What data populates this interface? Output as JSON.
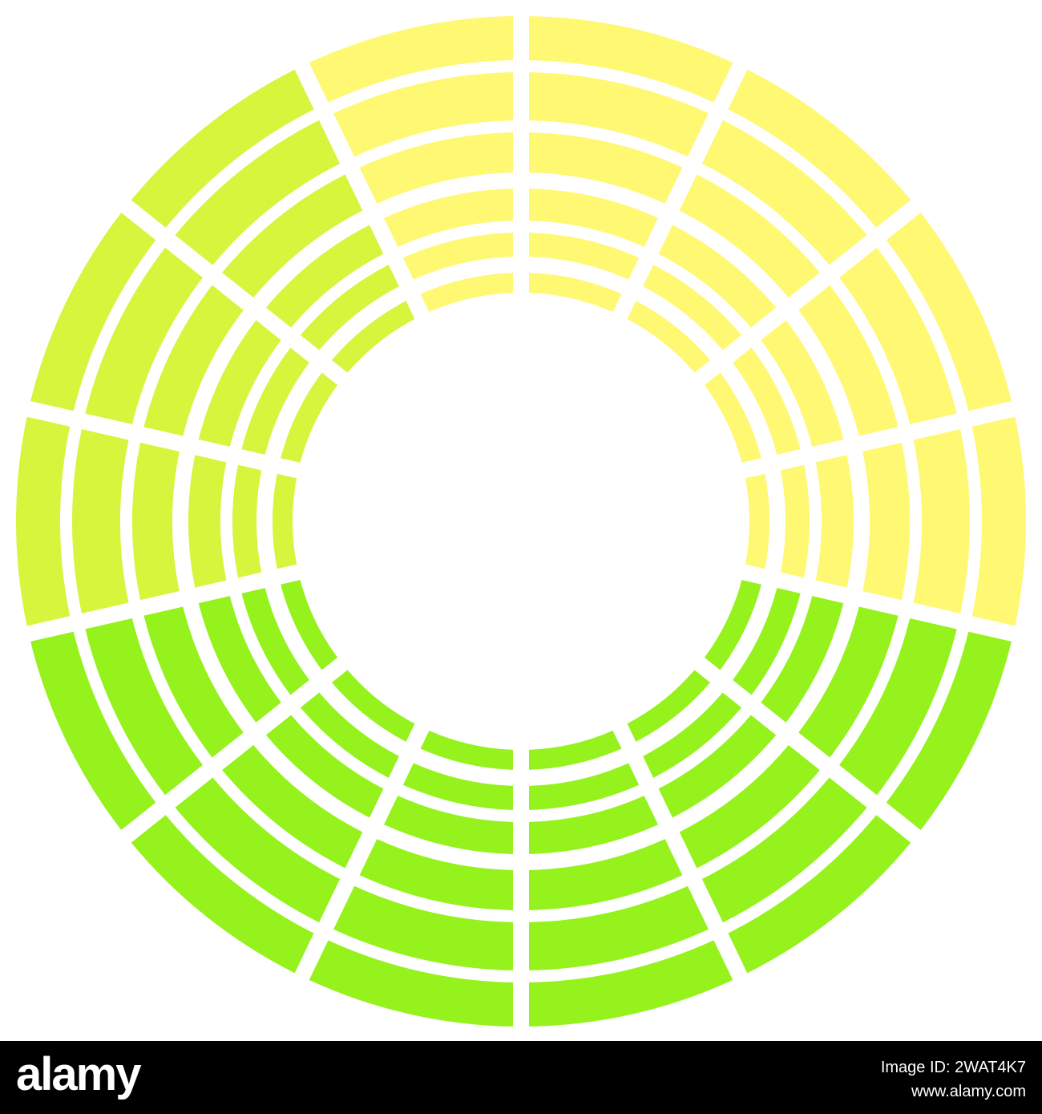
{
  "watermark": {
    "logo": "alamy",
    "image_id": "Image ID: 2WAT4K7",
    "url": "www.alamy.com"
  }
}
